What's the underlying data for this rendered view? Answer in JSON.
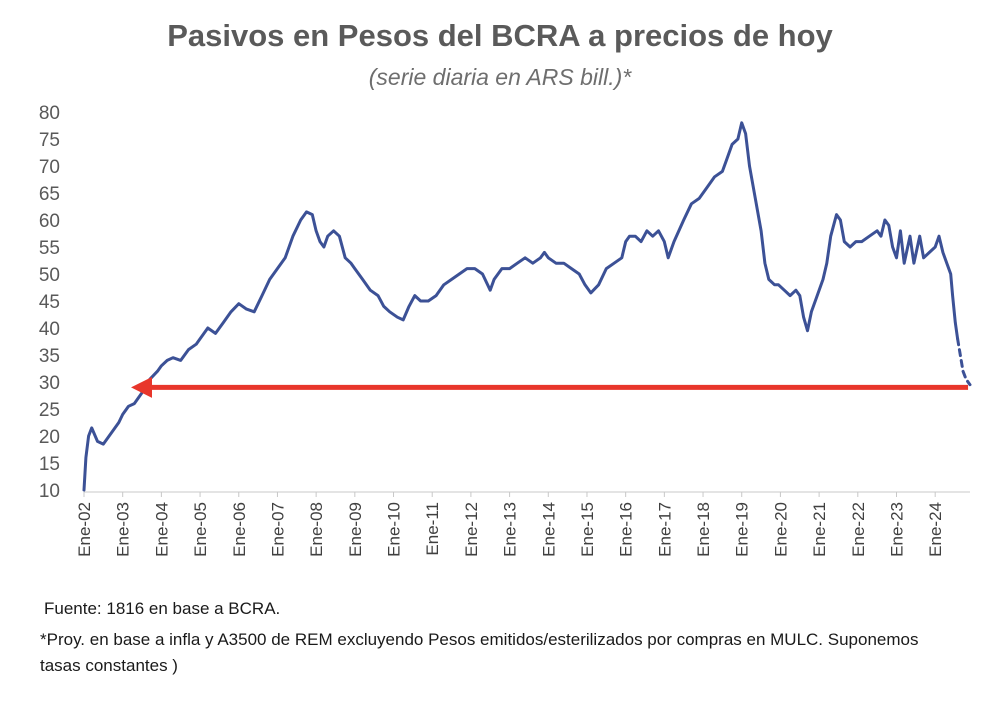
{
  "title": "Pasivos en Pesos del BCRA a precios de hoy",
  "subtitle": "(serie diaria en ARS bill.)*",
  "source": "Fuente: 1816 en base a BCRA.",
  "note": "*Proy. en base a infla y A3500 de REM excluyendo Pesos emitidos/esterilizados por compras en MULC. Suponemos tasas constantes )",
  "colors": {
    "series": "#3c5196",
    "arrow": "#e8362b",
    "text": "#5a5a5a"
  },
  "chart_data": {
    "type": "line",
    "title": "Pasivos en Pesos del BCRA a precios de hoy",
    "subtitle": "(serie diaria en ARS bill.)*",
    "ylim": [
      10,
      80
    ],
    "yticks": [
      10,
      15,
      20,
      25,
      30,
      35,
      40,
      45,
      50,
      55,
      60,
      65,
      70,
      75,
      80
    ],
    "xlim": [
      2002.0,
      2024.9
    ],
    "xticks": [
      {
        "x": 2002,
        "label": "Ene-02"
      },
      {
        "x": 2003,
        "label": "Ene-03"
      },
      {
        "x": 2004,
        "label": "Ene-04"
      },
      {
        "x": 2005,
        "label": "Ene-05"
      },
      {
        "x": 2006,
        "label": "Ene-06"
      },
      {
        "x": 2007,
        "label": "Ene-07"
      },
      {
        "x": 2008,
        "label": "Ene-08"
      },
      {
        "x": 2009,
        "label": "Ene-09"
      },
      {
        "x": 2010,
        "label": "Ene-10"
      },
      {
        "x": 2011,
        "label": "Ene-11"
      },
      {
        "x": 2012,
        "label": "Ene-12"
      },
      {
        "x": 2013,
        "label": "Ene-13"
      },
      {
        "x": 2014,
        "label": "Ene-14"
      },
      {
        "x": 2015,
        "label": "Ene-15"
      },
      {
        "x": 2016,
        "label": "Ene-16"
      },
      {
        "x": 2017,
        "label": "Ene-17"
      },
      {
        "x": 2018,
        "label": "Ene-18"
      },
      {
        "x": 2019,
        "label": "Ene-19"
      },
      {
        "x": 2020,
        "label": "Ene-20"
      },
      {
        "x": 2021,
        "label": "Ene-21"
      },
      {
        "x": 2022,
        "label": "Ene-22"
      },
      {
        "x": 2023,
        "label": "Ene-23"
      },
      {
        "x": 2024,
        "label": "Ene-24"
      }
    ],
    "grid": false,
    "series": [
      {
        "style": "solid",
        "points": [
          [
            2002.0,
            10
          ],
          [
            2002.05,
            16
          ],
          [
            2002.12,
            20
          ],
          [
            2002.2,
            21.5
          ],
          [
            2002.35,
            19
          ],
          [
            2002.5,
            18.5
          ],
          [
            2002.7,
            20.5
          ],
          [
            2002.9,
            22.5
          ],
          [
            2003.0,
            24
          ],
          [
            2003.15,
            25.5
          ],
          [
            2003.3,
            26
          ],
          [
            2003.5,
            28
          ],
          [
            2003.7,
            30.5
          ],
          [
            2003.9,
            32
          ],
          [
            2004.0,
            33
          ],
          [
            2004.15,
            34
          ],
          [
            2004.3,
            34.5
          ],
          [
            2004.5,
            34
          ],
          [
            2004.7,
            36
          ],
          [
            2004.9,
            37
          ],
          [
            2005.0,
            38
          ],
          [
            2005.2,
            40
          ],
          [
            2005.4,
            39
          ],
          [
            2005.6,
            41
          ],
          [
            2005.8,
            43
          ],
          [
            2006.0,
            44.5
          ],
          [
            2006.2,
            43.5
          ],
          [
            2006.4,
            43
          ],
          [
            2006.6,
            46
          ],
          [
            2006.8,
            49
          ],
          [
            2007.0,
            51
          ],
          [
            2007.2,
            53
          ],
          [
            2007.4,
            57
          ],
          [
            2007.6,
            60
          ],
          [
            2007.75,
            61.5
          ],
          [
            2007.9,
            61
          ],
          [
            2008.0,
            58
          ],
          [
            2008.1,
            56
          ],
          [
            2008.2,
            55
          ],
          [
            2008.3,
            57
          ],
          [
            2008.45,
            58
          ],
          [
            2008.6,
            57
          ],
          [
            2008.75,
            53
          ],
          [
            2008.9,
            52
          ],
          [
            2009.0,
            51
          ],
          [
            2009.2,
            49
          ],
          [
            2009.4,
            47
          ],
          [
            2009.6,
            46
          ],
          [
            2009.75,
            44
          ],
          [
            2009.9,
            43
          ],
          [
            2010.1,
            42
          ],
          [
            2010.25,
            41.5
          ],
          [
            2010.4,
            44
          ],
          [
            2010.55,
            46
          ],
          [
            2010.7,
            45
          ],
          [
            2010.9,
            45
          ],
          [
            2011.1,
            46
          ],
          [
            2011.3,
            48
          ],
          [
            2011.5,
            49
          ],
          [
            2011.7,
            50
          ],
          [
            2011.9,
            51
          ],
          [
            2012.1,
            51
          ],
          [
            2012.3,
            50
          ],
          [
            2012.5,
            47
          ],
          [
            2012.6,
            49
          ],
          [
            2012.8,
            51
          ],
          [
            2013.0,
            51
          ],
          [
            2013.2,
            52
          ],
          [
            2013.4,
            53
          ],
          [
            2013.6,
            52
          ],
          [
            2013.8,
            53
          ],
          [
            2013.9,
            54
          ],
          [
            2014.0,
            53
          ],
          [
            2014.2,
            52
          ],
          [
            2014.4,
            52
          ],
          [
            2014.6,
            51
          ],
          [
            2014.8,
            50
          ],
          [
            2014.95,
            48
          ],
          [
            2015.1,
            46.5
          ],
          [
            2015.3,
            48
          ],
          [
            2015.5,
            51
          ],
          [
            2015.7,
            52
          ],
          [
            2015.9,
            53
          ],
          [
            2016.0,
            56
          ],
          [
            2016.1,
            57
          ],
          [
            2016.25,
            57
          ],
          [
            2016.4,
            56
          ],
          [
            2016.55,
            58
          ],
          [
            2016.7,
            57
          ],
          [
            2016.85,
            58
          ],
          [
            2017.0,
            56
          ],
          [
            2017.1,
            53
          ],
          [
            2017.25,
            56
          ],
          [
            2017.5,
            60
          ],
          [
            2017.7,
            63
          ],
          [
            2017.9,
            64
          ],
          [
            2018.1,
            66
          ],
          [
            2018.3,
            68
          ],
          [
            2018.5,
            69
          ],
          [
            2018.6,
            71
          ],
          [
            2018.75,
            74
          ],
          [
            2018.9,
            75
          ],
          [
            2019.0,
            78
          ],
          [
            2019.1,
            76
          ],
          [
            2019.2,
            70
          ],
          [
            2019.35,
            64
          ],
          [
            2019.5,
            58
          ],
          [
            2019.6,
            52
          ],
          [
            2019.7,
            49
          ],
          [
            2019.85,
            48
          ],
          [
            2019.95,
            48
          ],
          [
            2020.1,
            47
          ],
          [
            2020.25,
            46
          ],
          [
            2020.4,
            47
          ],
          [
            2020.5,
            46
          ],
          [
            2020.6,
            42
          ],
          [
            2020.7,
            39.5
          ],
          [
            2020.8,
            43
          ],
          [
            2020.95,
            46
          ],
          [
            2021.1,
            49
          ],
          [
            2021.2,
            52
          ],
          [
            2021.3,
            57
          ],
          [
            2021.45,
            61
          ],
          [
            2021.55,
            60
          ],
          [
            2021.65,
            56
          ],
          [
            2021.8,
            55
          ],
          [
            2021.95,
            56
          ],
          [
            2022.1,
            56
          ],
          [
            2022.3,
            57
          ],
          [
            2022.5,
            58
          ],
          [
            2022.6,
            57
          ],
          [
            2022.7,
            60
          ],
          [
            2022.8,
            59
          ],
          [
            2022.9,
            55
          ],
          [
            2023.0,
            53
          ],
          [
            2023.1,
            58
          ],
          [
            2023.2,
            52
          ],
          [
            2023.35,
            57
          ],
          [
            2023.45,
            52
          ],
          [
            2023.6,
            57
          ],
          [
            2023.7,
            53
          ],
          [
            2023.85,
            54
          ],
          [
            2024.0,
            55
          ],
          [
            2024.1,
            57
          ],
          [
            2024.2,
            54
          ],
          [
            2024.3,
            52
          ],
          [
            2024.4,
            50
          ],
          [
            2024.45,
            46
          ],
          [
            2024.52,
            41
          ],
          [
            2024.58,
            38
          ]
        ]
      },
      {
        "style": "dashed",
        "points": [
          [
            2024.58,
            38
          ],
          [
            2024.65,
            35
          ],
          [
            2024.72,
            32
          ],
          [
            2024.8,
            30.5
          ],
          [
            2024.9,
            29.5
          ]
        ]
      }
    ],
    "annotations": [
      {
        "type": "arrow",
        "y": 29,
        "x_from": 2024.85,
        "x_to": 2003.65
      }
    ]
  }
}
